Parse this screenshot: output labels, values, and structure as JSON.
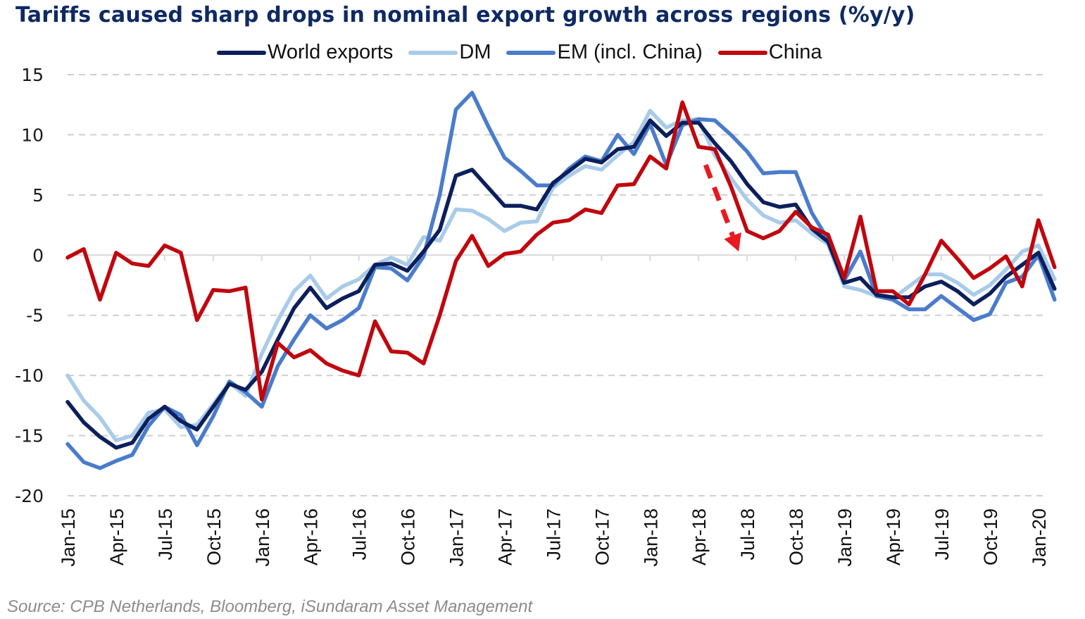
{
  "chart_data": {
    "type": "line",
    "title": "Tariffs caused sharp drops in nominal export growth across regions (%y/y)",
    "source": "Source: CPB Netherlands, Bloomberg, iSundaram Asset Management",
    "xlabel": "",
    "ylabel": "",
    "ylim": [
      -20,
      15
    ],
    "yticks": [
      15,
      10,
      5,
      0,
      -5,
      -10,
      -15,
      -20
    ],
    "grid": "horizontal-dashed",
    "legend_position": "top-center",
    "x": [
      "Jan-15",
      "Feb-15",
      "Mar-15",
      "Apr-15",
      "May-15",
      "Jun-15",
      "Jul-15",
      "Aug-15",
      "Sep-15",
      "Oct-15",
      "Nov-15",
      "Dec-15",
      "Jan-16",
      "Feb-16",
      "Mar-16",
      "Apr-16",
      "May-16",
      "Jun-16",
      "Jul-16",
      "Aug-16",
      "Sep-16",
      "Oct-16",
      "Nov-16",
      "Dec-16",
      "Jan-17",
      "Feb-17",
      "Mar-17",
      "Apr-17",
      "May-17",
      "Jun-17",
      "Jul-17",
      "Aug-17",
      "Sep-17",
      "Oct-17",
      "Nov-17",
      "Dec-17",
      "Jan-18",
      "Feb-18",
      "Mar-18",
      "Apr-18",
      "May-18",
      "Jun-18",
      "Jul-18",
      "Aug-18",
      "Sep-18",
      "Oct-18",
      "Nov-18",
      "Dec-18",
      "Jan-19",
      "Feb-19",
      "Mar-19",
      "Apr-19",
      "May-19",
      "Jun-19",
      "Jul-19",
      "Aug-19",
      "Sep-19",
      "Oct-19",
      "Nov-19",
      "Dec-19",
      "Jan-20",
      "Feb-20"
    ],
    "xtick_labels": [
      "Jan-15",
      "Apr-15",
      "Jul-15",
      "Oct-15",
      "Jan-16",
      "Apr-16",
      "Jul-16",
      "Oct-16",
      "Jan-17",
      "Apr-17",
      "Jul-17",
      "Oct-17",
      "Jan-18",
      "Apr-18",
      "Jul-18",
      "Oct-18",
      "Jan-19",
      "Apr-19",
      "Jul-19",
      "Oct-19",
      "Jan-20"
    ],
    "series": [
      {
        "name": "World exports",
        "color": "#0c1f5c",
        "values": [
          -12.2,
          -13.9,
          -15.1,
          -16.0,
          -15.6,
          -13.6,
          -12.6,
          -13.8,
          -14.5,
          -12.6,
          -10.7,
          -11.2,
          -9.7,
          -7.0,
          -4.4,
          -2.7,
          -4.4,
          -3.6,
          -3.0,
          -0.8,
          -0.7,
          -1.3,
          0.3,
          2.1,
          6.6,
          7.1,
          5.6,
          4.1,
          4.1,
          3.8,
          6.0,
          7.0,
          8.0,
          7.7,
          8.8,
          9.0,
          11.2,
          9.9,
          11.0,
          11.0,
          9.3,
          7.8,
          5.9,
          4.4,
          4.0,
          4.2,
          2.2,
          1.1,
          -2.3,
          -1.9,
          -3.3,
          -3.5,
          -3.5,
          -2.6,
          -2.2,
          -3.0,
          -4.1,
          -3.2,
          -1.8,
          -0.8,
          0.2,
          -2.8
        ]
      },
      {
        "name": "DM",
        "color": "#a9cbea",
        "values": [
          -10.0,
          -12.1,
          -13.5,
          -15.4,
          -15.0,
          -13.1,
          -12.8,
          -14.3,
          -14.1,
          -12.4,
          -10.6,
          -11.7,
          -8.2,
          -5.4,
          -3.0,
          -1.7,
          -3.6,
          -2.6,
          -2.0,
          -0.8,
          -0.2,
          -0.8,
          1.5,
          1.2,
          3.8,
          3.7,
          3.0,
          2.0,
          2.7,
          2.8,
          5.6,
          6.6,
          7.4,
          7.1,
          8.3,
          9.4,
          12.0,
          10.6,
          11.2,
          11.3,
          8.3,
          6.4,
          4.6,
          3.3,
          2.7,
          2.9,
          1.8,
          0.9,
          -2.6,
          -2.9,
          -3.4,
          -3.6,
          -2.6,
          -1.6,
          -1.6,
          -2.3,
          -3.3,
          -2.5,
          -1.2,
          0.3,
          0.8,
          -2.0
        ]
      },
      {
        "name": "EM (incl. China)",
        "color": "#4a7ccb",
        "values": [
          -15.7,
          -17.2,
          -17.7,
          -17.1,
          -16.6,
          -14.2,
          -12.6,
          -13.3,
          -15.8,
          -13.4,
          -10.5,
          -11.4,
          -12.6,
          -9.2,
          -7.0,
          -5.0,
          -6.1,
          -5.4,
          -4.4,
          -1.0,
          -1.1,
          -2.1,
          -0.1,
          5.0,
          12.1,
          13.5,
          10.7,
          8.1,
          7.0,
          5.8,
          5.8,
          7.2,
          8.2,
          7.8,
          10.0,
          8.4,
          10.9,
          7.5,
          10.8,
          11.3,
          11.2,
          10.0,
          8.6,
          6.8,
          6.9,
          6.9,
          3.5,
          1.3,
          -2.1,
          0.3,
          -3.4,
          -3.7,
          -4.5,
          -4.5,
          -3.4,
          -4.4,
          -5.4,
          -4.9,
          -2.3,
          -1.8,
          0.0,
          -3.7
        ]
      },
      {
        "name": "China",
        "color": "#c0070e",
        "values": [
          -0.2,
          0.5,
          -3.7,
          0.2,
          -0.7,
          -0.9,
          0.8,
          0.2,
          -5.4,
          -2.9,
          -3.0,
          -2.7,
          -12.0,
          -7.3,
          -8.5,
          -7.9,
          -9.0,
          -9.6,
          -10.0,
          -5.5,
          -8.0,
          -8.1,
          -9.0,
          -5.0,
          -0.5,
          1.6,
          -0.9,
          0.1,
          0.3,
          1.7,
          2.7,
          2.9,
          3.8,
          3.5,
          5.8,
          5.9,
          8.2,
          7.2,
          12.7,
          9.0,
          8.8,
          5.7,
          2.0,
          1.4,
          2.0,
          3.6,
          2.3,
          1.7,
          -1.9,
          3.2,
          -3.0,
          -3.0,
          -4.1,
          -1.6,
          1.2,
          -0.3,
          -1.9,
          -1.1,
          -0.1,
          -2.6,
          2.9,
          -1.0
        ]
      }
    ],
    "annotations": [
      {
        "type": "dashed-arrow",
        "color": "#e8191f",
        "from": {
          "x": "Apr-18",
          "y": 7.5
        },
        "to": {
          "x": "Jul-18",
          "y": 0.3
        },
        "meaning": "sharp drop after tariffs"
      }
    ]
  }
}
